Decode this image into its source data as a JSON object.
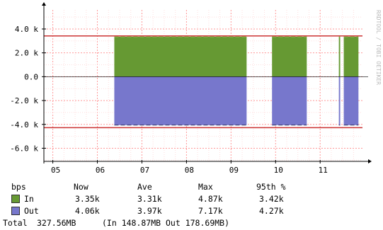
{
  "chart_data": {
    "type": "area",
    "watermark": "RRDTOOL / TOBI OETIKER",
    "x_ticks": [
      "05",
      "06",
      "07",
      "08",
      "09",
      "10",
      "11"
    ],
    "y_ticks": [
      "4.0 k",
      "2.0 k",
      "0.0",
      "-2.0 k",
      "-4.0 k",
      "-6.0 k"
    ],
    "y_tick_values": [
      4000,
      2000,
      0,
      -2000,
      -4000,
      -6000
    ],
    "ylim": [
      -7100,
      5600
    ],
    "xlim": [
      4.8,
      11.95
    ],
    "hrules": [
      {
        "value": 3420,
        "color": "#cc3333"
      },
      {
        "value": -4270,
        "color": "#cc3333"
      }
    ],
    "series": [
      {
        "name": "In",
        "color": "#669933",
        "segments": [
          {
            "x": [
              6.38,
              9.35
            ],
            "y": 3350
          },
          {
            "x": [
              9.92,
              10.7
            ],
            "y": 3350
          },
          {
            "x": [
              11.42,
              11.45
            ],
            "y": 3350
          },
          {
            "x": [
              11.53,
              11.86
            ],
            "y": 3350
          }
        ]
      },
      {
        "name": "Out",
        "color": "#7777cc",
        "segments": [
          {
            "x": [
              6.38,
              9.35
            ],
            "y": -4060
          },
          {
            "x": [
              9.92,
              10.7
            ],
            "y": -4060
          },
          {
            "x": [
              11.42,
              11.45
            ],
            "y": -4060
          },
          {
            "x": [
              11.53,
              11.86
            ],
            "y": -4060
          }
        ]
      }
    ]
  },
  "legend": {
    "unit": "bps",
    "headers": [
      "Now",
      "Ave",
      "Max",
      "95th %"
    ],
    "rows": [
      {
        "name": "In",
        "color": "#669933",
        "now": "3.35k",
        "ave": "3.31k",
        "max": "4.87k",
        "p95": "3.42k"
      },
      {
        "name": "Out",
        "color": "#7777cc",
        "now": "4.06k",
        "ave": "3.97k",
        "max": "7.17k",
        "p95": "4.27k"
      }
    ],
    "total_label": "Total",
    "total_value": "327.56MB",
    "total_breakdown": "(In 148.87MB  Out 178.69MB)"
  }
}
